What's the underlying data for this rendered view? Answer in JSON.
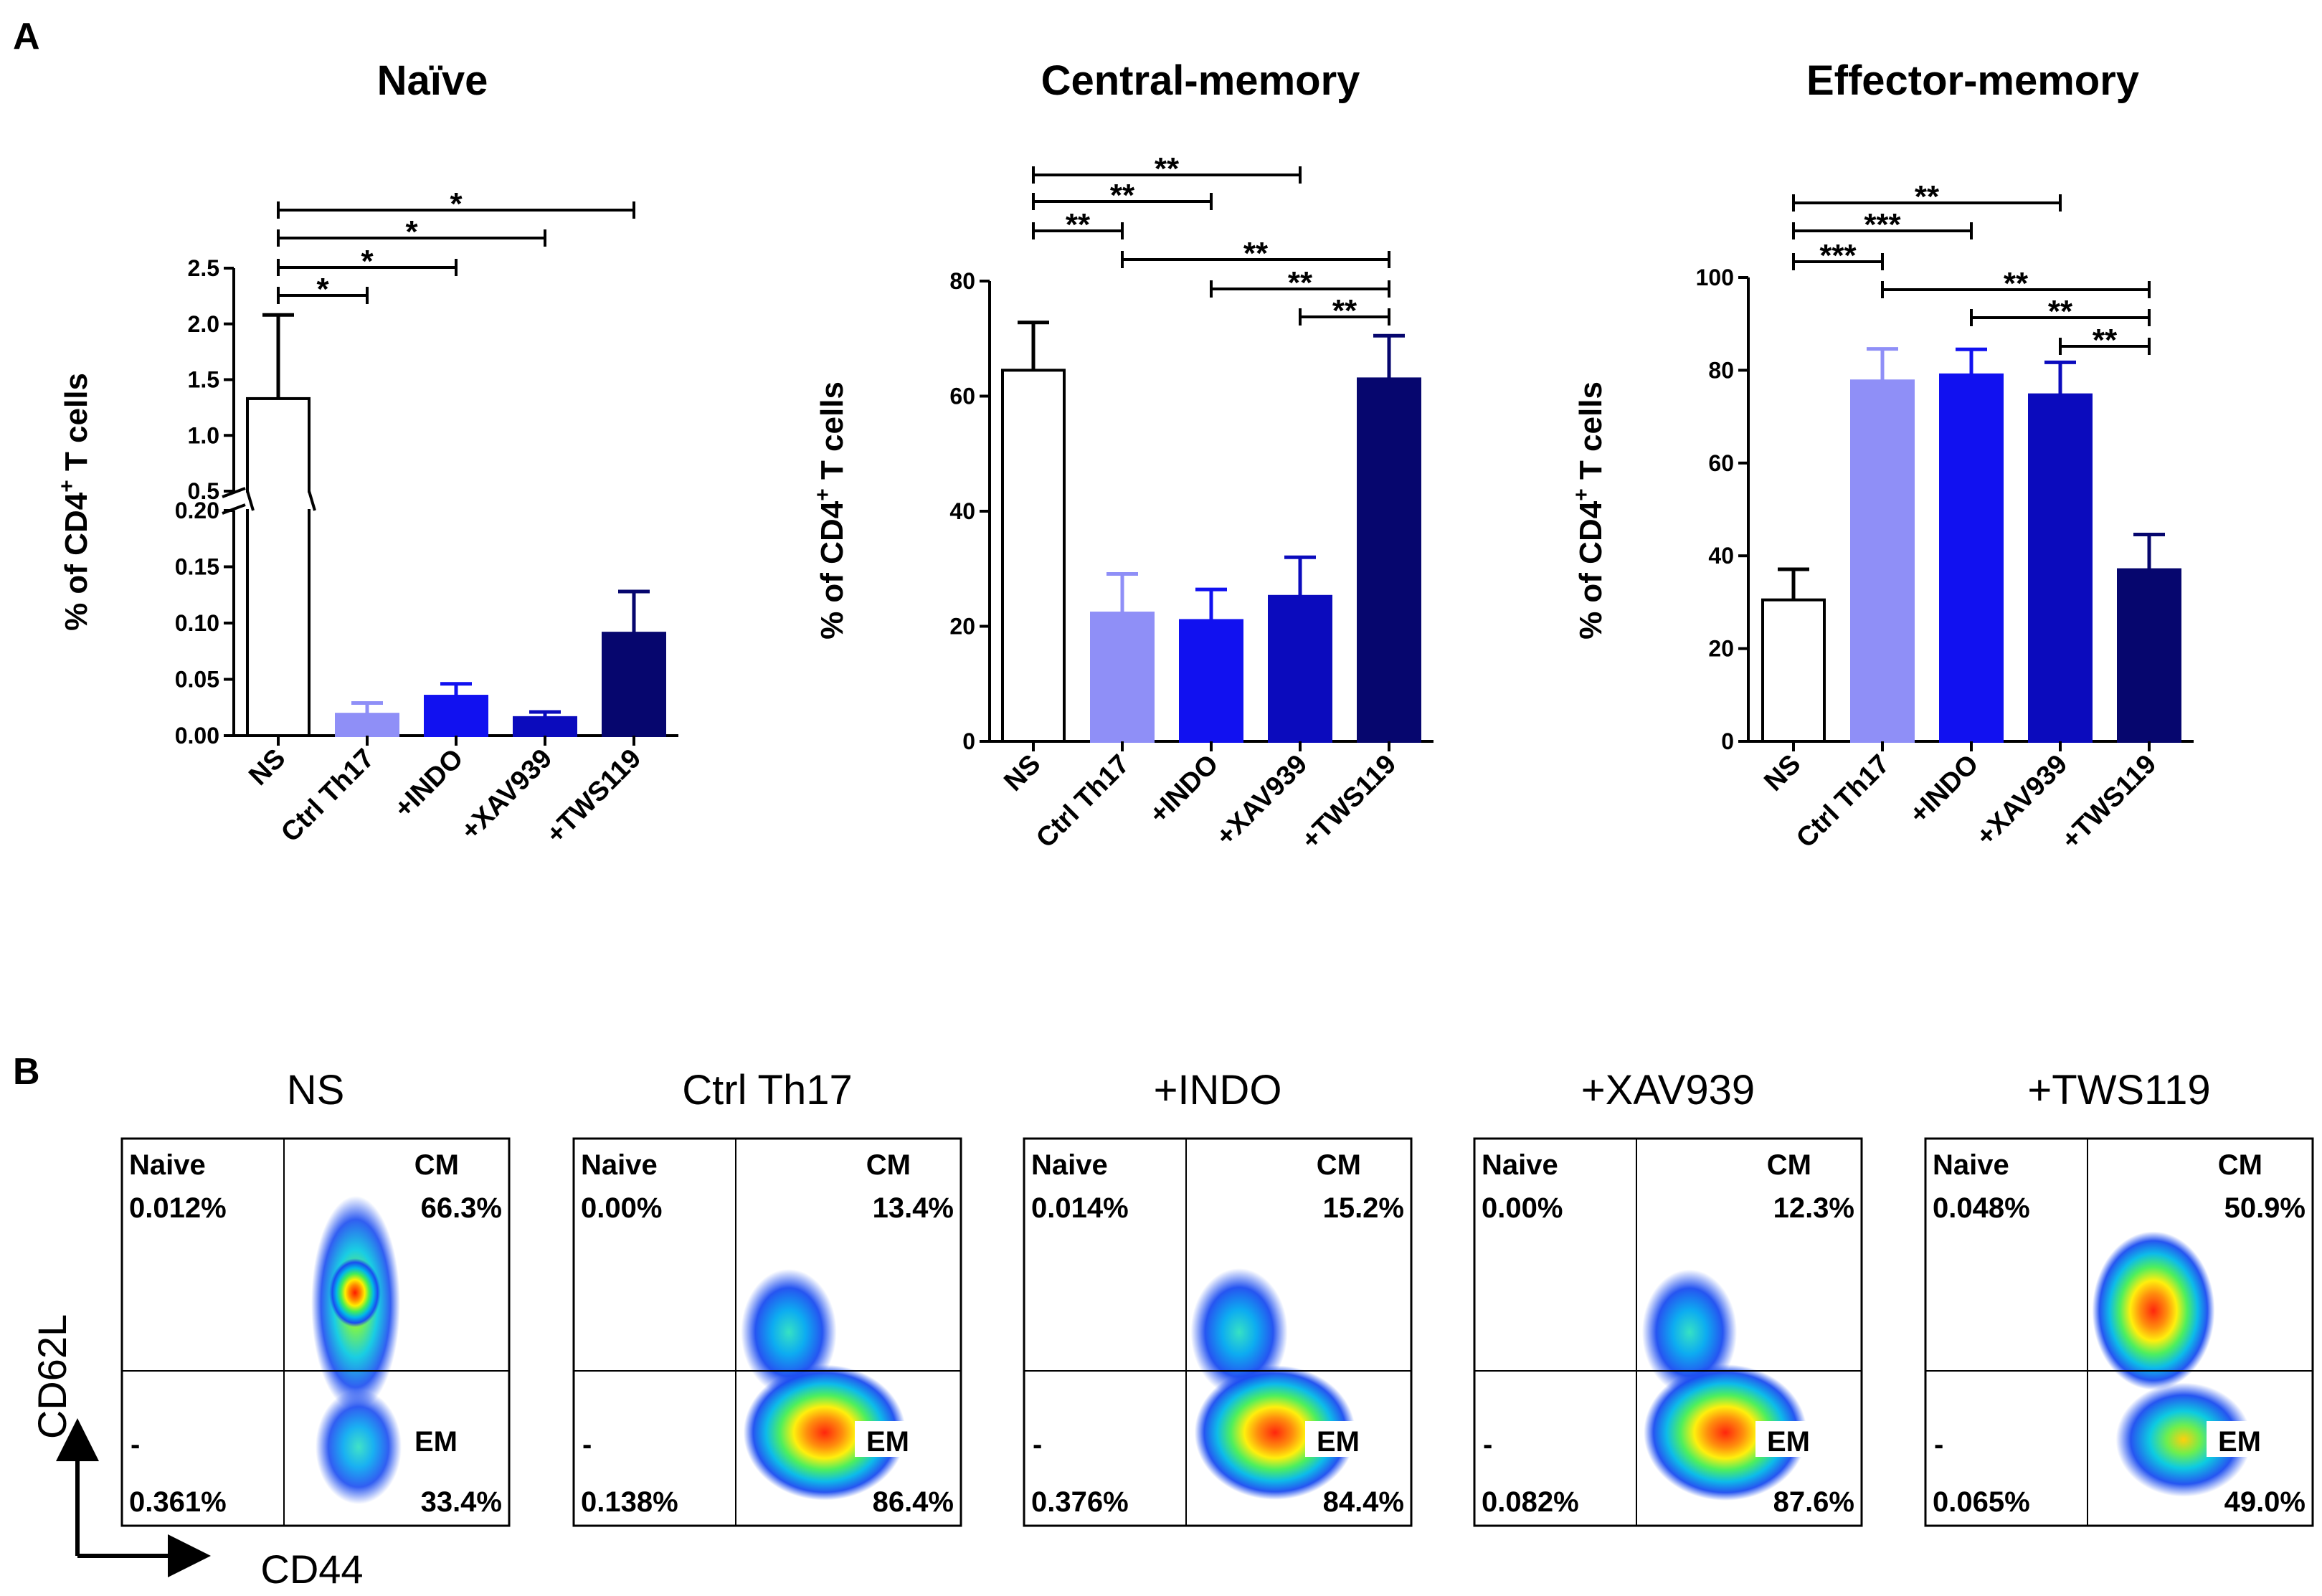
{
  "panel_a_label": "A",
  "panel_b_label": "B",
  "chart_data": [
    {
      "type": "bar",
      "title": "Naïve",
      "ylabel": "% of CD4",
      "ylabel_sup": "+",
      "ylabel_suffix": " T cells",
      "categories": [
        "NS",
        "Ctrl Th17",
        "+INDO",
        "+XAV939",
        "+TWS119"
      ],
      "values": [
        1.33,
        0.019,
        0.035,
        0.016,
        0.091
      ],
      "errors": [
        0.75,
        0.01,
        0.011,
        0.005,
        0.037
      ],
      "colors": [
        "#ffffff",
        "#8f8ff7",
        "#1111f0",
        "#0b0bbd",
        "#06066e"
      ],
      "axis_break": true,
      "lower_ylim": [
        0,
        0.2
      ],
      "upper_ylim": [
        0.5,
        2.5
      ],
      "lower_ticks": [
        "0.00",
        "0.05",
        "0.10",
        "0.15",
        "0.20"
      ],
      "upper_ticks": [
        "0.5",
        "1.0",
        "1.5",
        "2.0",
        "2.5"
      ],
      "significance": [
        {
          "from": 0,
          "to": 1,
          "label": "*"
        },
        {
          "from": 0,
          "to": 2,
          "label": "*"
        },
        {
          "from": 0,
          "to": 3,
          "label": "*"
        },
        {
          "from": 0,
          "to": 4,
          "label": "*"
        }
      ]
    },
    {
      "type": "bar",
      "title": "Central-memory",
      "ylabel": "% of CD4",
      "ylabel_sup": "+",
      "ylabel_suffix": " T cells",
      "categories": [
        "NS",
        "Ctrl Th17",
        "+INDO",
        "+XAV939",
        "+TWS119"
      ],
      "values": [
        64.5,
        22.3,
        21.0,
        25.2,
        63.0
      ],
      "errors": [
        8.3,
        6.8,
        5.4,
        6.8,
        7.5
      ],
      "colors": [
        "#ffffff",
        "#8f8ff7",
        "#1111f0",
        "#0b0bbd",
        "#06066e"
      ],
      "ylim": [
        0,
        80
      ],
      "ticks": [
        "0",
        "20",
        "40",
        "60",
        "80"
      ],
      "significance": [
        {
          "from": 0,
          "to": 1,
          "label": "**"
        },
        {
          "from": 0,
          "to": 2,
          "label": "**"
        },
        {
          "from": 0,
          "to": 3,
          "label": "**"
        },
        {
          "from": 1,
          "to": 4,
          "label": "**"
        },
        {
          "from": 2,
          "to": 4,
          "label": "**"
        },
        {
          "from": 3,
          "to": 4,
          "label": "**"
        }
      ]
    },
    {
      "type": "bar",
      "title": "Effector-memory",
      "ylabel": "% of CD4",
      "ylabel_sup": "+",
      "ylabel_suffix": " T cells",
      "categories": [
        "NS",
        "Ctrl Th17",
        "+INDO",
        "+XAV939",
        "+TWS119"
      ],
      "values": [
        30.5,
        77.7,
        79.0,
        74.7,
        37.0
      ],
      "errors": [
        6.6,
        6.9,
        5.5,
        7.0,
        7.6
      ],
      "colors": [
        "#ffffff",
        "#8f8ff7",
        "#1111f0",
        "#0b0bbd",
        "#06066e"
      ],
      "ylim": [
        0,
        100
      ],
      "ticks": [
        "0",
        "20",
        "40",
        "60",
        "80",
        "100"
      ],
      "significance": [
        {
          "from": 0,
          "to": 1,
          "label": "***"
        },
        {
          "from": 0,
          "to": 2,
          "label": "***"
        },
        {
          "from": 0,
          "to": 3,
          "label": "**"
        },
        {
          "from": 1,
          "to": 4,
          "label": "**"
        },
        {
          "from": 2,
          "to": 4,
          "label": "**"
        },
        {
          "from": 3,
          "to": 4,
          "label": "**"
        }
      ]
    }
  ],
  "flow": {
    "x_axis": "CD44",
    "y_axis": "CD62L",
    "plots": [
      {
        "title": "NS",
        "naive_label": "Naive",
        "naive": "0.012%",
        "cm_label": "CM",
        "cm": "66.3%",
        "neg_label": "-",
        "neg": "0.361%",
        "em_label": "EM",
        "em": "33.4%",
        "cm_frac": 0.663,
        "em_frac": 0.334
      },
      {
        "title": "Ctrl Th17",
        "naive_label": "Naive",
        "naive": "0.00%",
        "cm_label": "CM",
        "cm": "13.4%",
        "neg_label": "-",
        "neg": "0.138%",
        "em_label": "EM",
        "em": "86.4%",
        "cm_frac": 0.134,
        "em_frac": 0.864
      },
      {
        "title": "+INDO",
        "naive_label": "Naive",
        "naive": "0.014%",
        "cm_label": "CM",
        "cm": "15.2%",
        "neg_label": "-",
        "neg": "0.376%",
        "em_label": "EM",
        "em": "84.4%",
        "cm_frac": 0.152,
        "em_frac": 0.844
      },
      {
        "title": "+XAV939",
        "naive_label": "Naive",
        "naive": "0.00%",
        "cm_label": "CM",
        "cm": "12.3%",
        "neg_label": "-",
        "neg": "0.082%",
        "em_label": "EM",
        "em": "87.6%",
        "cm_frac": 0.123,
        "em_frac": 0.876
      },
      {
        "title": "+TWS119",
        "naive_label": "Naive",
        "naive": "0.048%",
        "cm_label": "CM",
        "cm": "50.9%",
        "neg_label": "-",
        "neg": "0.065%",
        "em_label": "EM",
        "em": "49.0%",
        "cm_frac": 0.509,
        "em_frac": 0.49
      }
    ]
  }
}
